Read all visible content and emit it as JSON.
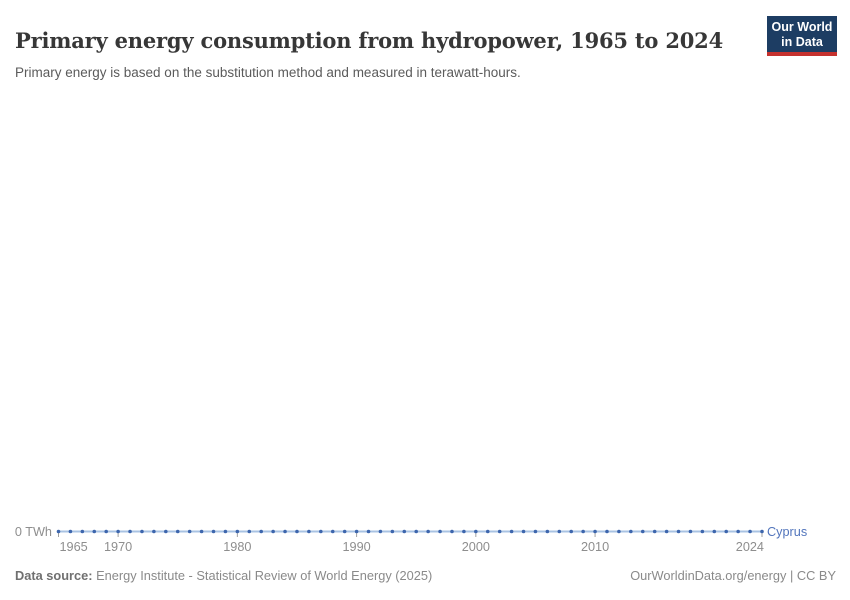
{
  "header": {
    "title": "Primary energy consumption from hydropower, 1965 to 2024",
    "subtitle": "Primary energy is based on the substitution method and measured in terawatt-hours.",
    "logo": {
      "line1": "Our World",
      "line2": "in Data",
      "bg_color": "#1d3d63",
      "accent_color": "#c5312e"
    }
  },
  "chart_data": {
    "type": "line",
    "title": "Primary energy consumption from hydropower, 1965 to 2024",
    "unit": "terawatt-hours",
    "x": [
      1965,
      1966,
      1967,
      1968,
      1969,
      1970,
      1971,
      1972,
      1973,
      1974,
      1975,
      1976,
      1977,
      1978,
      1979,
      1980,
      1981,
      1982,
      1983,
      1984,
      1985,
      1986,
      1987,
      1988,
      1989,
      1990,
      1991,
      1992,
      1993,
      1994,
      1995,
      1996,
      1997,
      1998,
      1999,
      2000,
      2001,
      2002,
      2003,
      2004,
      2005,
      2006,
      2007,
      2008,
      2009,
      2010,
      2011,
      2012,
      2013,
      2014,
      2015,
      2016,
      2017,
      2018,
      2019,
      2020,
      2021,
      2022,
      2023,
      2024
    ],
    "series": [
      {
        "name": "Cyprus",
        "color": "#3d66ad",
        "values": [
          0,
          0,
          0,
          0,
          0,
          0,
          0,
          0,
          0,
          0,
          0,
          0,
          0,
          0,
          0,
          0,
          0,
          0,
          0,
          0,
          0,
          0,
          0,
          0,
          0,
          0,
          0,
          0,
          0,
          0,
          0,
          0,
          0,
          0,
          0,
          0,
          0,
          0,
          0,
          0,
          0,
          0,
          0,
          0,
          0,
          0,
          0,
          0,
          0,
          0,
          0,
          0,
          0,
          0,
          0,
          0,
          0,
          0,
          0,
          0
        ]
      }
    ],
    "x_ticks": [
      "1965",
      "1970",
      "1980",
      "1990",
      "2000",
      "2010",
      "2024"
    ],
    "y_ticks": [
      0
    ],
    "y_axis_label": "0 TWh",
    "ylim": [
      0,
      0
    ],
    "grid": false,
    "entity_label": "Cyprus",
    "entity_label_color": "#5275bc",
    "line_color_light": "#a9c3e3",
    "tick_color": "#a0a0a0",
    "legend_position": "right-of-line"
  },
  "footer": {
    "source_label": "Data source:",
    "source_text": " Energy Institute - Statistical Review of World Energy (2025)",
    "attribution": "OurWorldinData.org/energy | CC BY"
  }
}
